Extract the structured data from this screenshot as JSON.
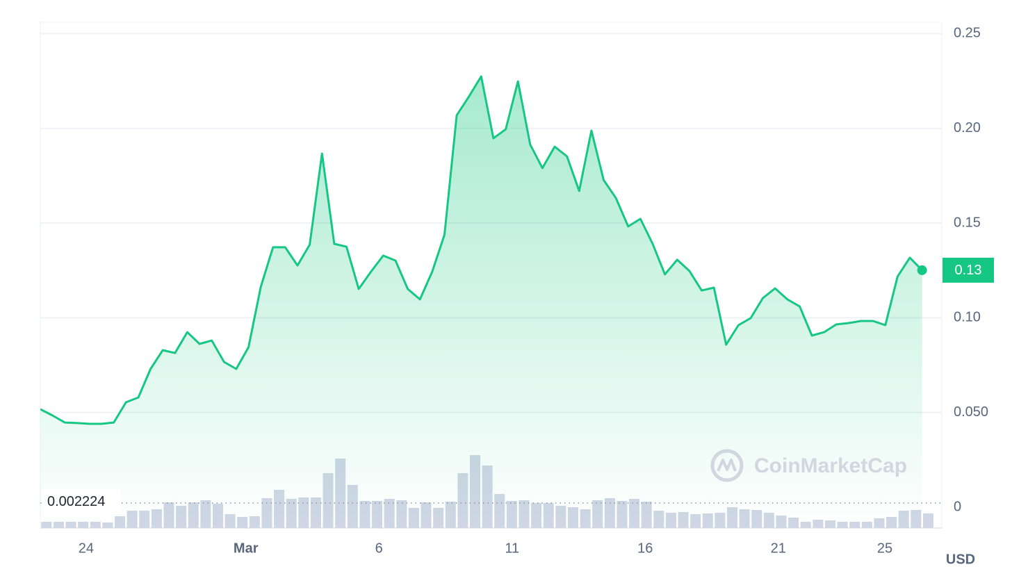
{
  "chart_data": {
    "type": "line",
    "color": "#16c784",
    "x": [
      -1.72,
      -1.26,
      -0.8,
      -0.34,
      0.12,
      0.58,
      1.04,
      1.5,
      1.96,
      2.42,
      2.88,
      3.34,
      3.8,
      4.26,
      4.72,
      5.18,
      5.64,
      6.1,
      6.56,
      7.02,
      7.48,
      7.94,
      8.4,
      8.86,
      9.32,
      9.78,
      10.24,
      10.7,
      11.16,
      11.62,
      12.08,
      12.54,
      13,
      13.46,
      13.92,
      14.38,
      14.84,
      15.3,
      15.76,
      16.22,
      16.68,
      17.14,
      17.6,
      18.06,
      18.52,
      18.98,
      19.44,
      19.9,
      20.36,
      20.82,
      21.28,
      21.74,
      22.2,
      22.66,
      23.12,
      23.58,
      24.04,
      24.5,
      24.96,
      25.42,
      25.88,
      26.34,
      26.8,
      27.26,
      27.72,
      28.18,
      28.64,
      29.1,
      29.56,
      30.02,
      30.48,
      30.94,
      31.4
    ],
    "values": [
      0.0517,
      0.0484,
      0.0447,
      0.0444,
      0.044,
      0.044,
      0.0447,
      0.0554,
      0.0579,
      0.073,
      0.0829,
      0.0814,
      0.0924,
      0.0862,
      0.088,
      0.0767,
      0.073,
      0.0844,
      0.1163,
      0.1372,
      0.1372,
      0.1276,
      0.1386,
      0.1867,
      0.139,
      0.1375,
      0.1152,
      0.1243,
      0.1328,
      0.1302,
      0.1152,
      0.1097,
      0.1243,
      0.1438,
      0.2069,
      0.2168,
      0.2274,
      0.1947,
      0.1995,
      0.2248,
      0.1914,
      0.179,
      0.1903,
      0.1852,
      0.1669,
      0.1988,
      0.1727,
      0.1632,
      0.1482,
      0.1522,
      0.139,
      0.1229,
      0.1306,
      0.1247,
      0.1144,
      0.1159,
      0.0858,
      0.0961,
      0.0998,
      0.1104,
      0.1155,
      0.1097,
      0.106,
      0.0906,
      0.0924,
      0.0965,
      0.0972,
      0.0983,
      0.0983,
      0.0961,
      0.1218,
      0.1317,
      0.1251
    ],
    "value_labels": [
      null,
      null,
      null,
      null,
      null,
      null,
      null,
      null,
      null,
      null,
      null,
      null,
      null,
      null,
      null,
      null,
      null,
      null,
      null,
      null,
      null,
      null,
      null,
      null,
      null,
      null,
      null,
      null,
      null,
      null,
      null,
      null,
      null,
      null,
      null,
      null,
      null,
      null,
      null,
      null,
      null,
      null,
      null,
      null,
      null,
      null,
      null,
      null,
      null,
      null,
      null,
      null,
      null,
      null,
      null,
      null,
      null,
      null,
      null,
      null,
      null,
      null,
      null,
      null,
      null,
      null,
      null,
      null,
      null,
      null,
      null,
      null,
      "0.13"
    ],
    "volume": {
      "color": "#cfd6e4",
      "values": [
        9,
        9,
        9,
        9,
        9,
        8,
        17,
        25,
        25,
        27,
        37,
        32,
        37,
        40,
        35,
        20,
        16,
        17,
        43,
        55,
        42,
        44,
        44,
        79,
        100,
        62,
        39,
        39,
        42,
        40,
        29,
        37,
        29,
        38,
        79,
        105,
        90,
        49,
        39,
        40,
        36,
        36,
        32,
        30,
        27,
        40,
        43,
        39,
        42,
        38,
        25,
        22,
        23,
        20,
        21,
        22,
        30,
        27,
        26,
        22,
        18,
        15,
        9,
        12,
        11,
        9,
        9,
        9,
        14,
        16,
        25,
        26,
        21
      ]
    },
    "y2lim": [
      0,
      728
    ],
    "xlim": [
      -1.72,
      32.14
    ],
    "xticks": [
      {
        "value": 0,
        "label": "24"
      },
      {
        "value": 6,
        "label": "Mar"
      },
      {
        "value": 11,
        "label": "6"
      },
      {
        "value": 16,
        "label": "11"
      },
      {
        "value": 21,
        "label": "16"
      },
      {
        "value": 26,
        "label": "21"
      },
      {
        "value": 30,
        "label": "25"
      }
    ],
    "ylim": [
      -0.011,
      0.256
    ],
    "yticks": [
      0,
      {
        "value": 0.05,
        "label": "0.050"
      },
      {
        "value": 0.1,
        "label": "0.10"
      },
      {
        "value": 0.15,
        "label": "0.15"
      },
      {
        "value": 0.2,
        "label": "0.20"
      },
      {
        "value": 0.25,
        "label": "0.25"
      }
    ],
    "grid": true,
    "reference_line": 0.002224,
    "currency": "USD",
    "watermark": "CoinMarketCap"
  }
}
